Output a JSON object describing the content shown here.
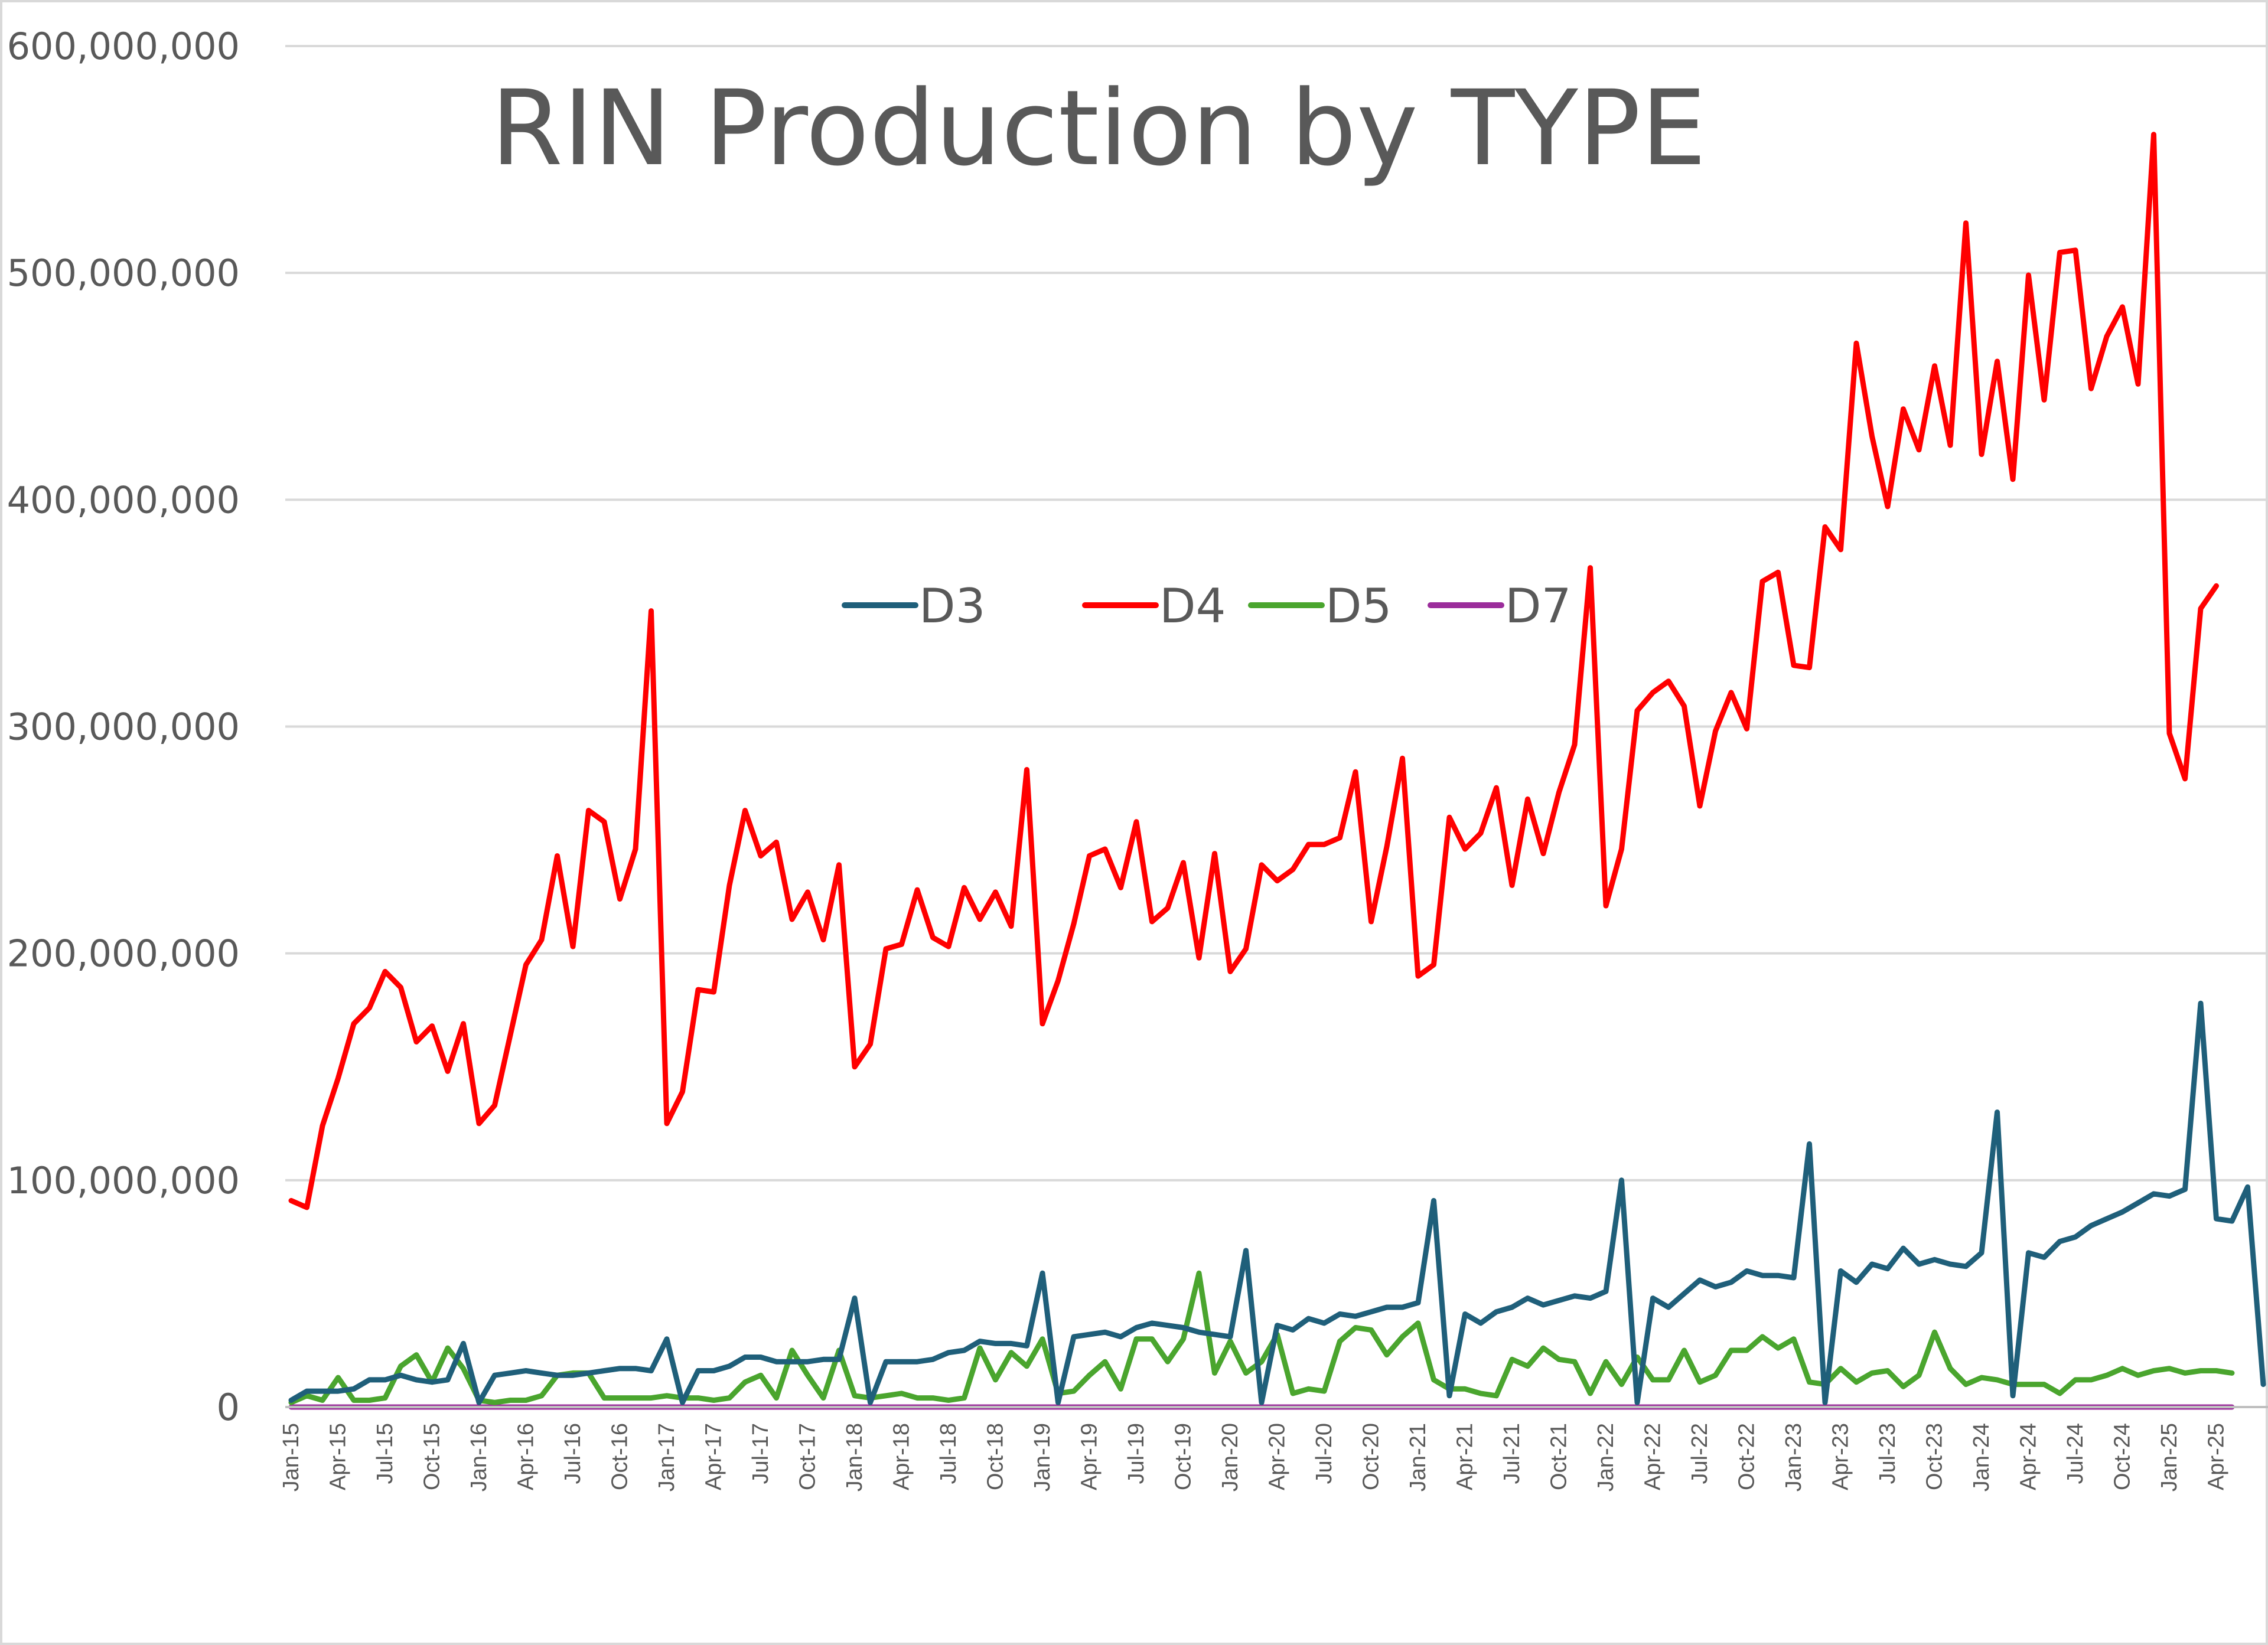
{
  "chart_data": {
    "type": "line",
    "title": "RIN Production by TYPE",
    "xlabel": "",
    "ylabel": "",
    "ylim": [
      0,
      600000000
    ],
    "yticks": [
      0,
      100000000,
      200000000,
      300000000,
      400000000,
      500000000,
      600000000
    ],
    "ytick_labels": [
      "0",
      "100,000,000",
      "200,000,000",
      "300,000,000",
      "400,000,000",
      "500,000,000",
      "600,000,000"
    ],
    "x_labels": [
      "Jan-15",
      "Apr-15",
      "Jul-15",
      "Oct-15",
      "Jan-16",
      "Apr-16",
      "Jul-16",
      "Oct-16",
      "Jan-17",
      "Apr-17",
      "Jul-17",
      "Oct-17",
      "Jan-18",
      "Apr-18",
      "Jul-18",
      "Oct-18",
      "Jan-19",
      "Apr-19",
      "Jul-19",
      "Oct-19",
      "Jan-20",
      "Apr-20",
      "Jul-20",
      "Oct-20",
      "Jan-21",
      "Apr-21",
      "Jul-21",
      "Oct-21",
      "Jan-22",
      "Apr-22",
      "Jul-22",
      "Oct-22",
      "Jan-23",
      "Apr-23",
      "Jul-23",
      "Oct-23",
      "Jan-24",
      "Apr-24",
      "Jul-24",
      "Oct-24",
      "Jan-25",
      "Apr-25"
    ],
    "x_start": "Jan-15",
    "x_end": "Apr-25",
    "grid": true,
    "legend_position": "center",
    "series": [
      {
        "name": "D3",
        "color": "#1f5f7a",
        "values": [
          3000000,
          7000000,
          7000000,
          7000000,
          8000000,
          12000000,
          12000000,
          14000000,
          12000000,
          11000000,
          12000000,
          28000000,
          2000000,
          14000000,
          15000000,
          16000000,
          15000000,
          14000000,
          14000000,
          15000000,
          16000000,
          17000000,
          17000000,
          16000000,
          30000000,
          2000000,
          16000000,
          16000000,
          18000000,
          22000000,
          22000000,
          20000000,
          20000000,
          20000000,
          21000000,
          21000000,
          48000000,
          2000000,
          20000000,
          20000000,
          20000000,
          21000000,
          24000000,
          25000000,
          29000000,
          28000000,
          28000000,
          27000000,
          59000000,
          2000000,
          31000000,
          32000000,
          33000000,
          31000000,
          35000000,
          37000000,
          36000000,
          35000000,
          33000000,
          32000000,
          31000000,
          69000000,
          2000000,
          36000000,
          34000000,
          39000000,
          37000000,
          41000000,
          40000000,
          42000000,
          44000000,
          44000000,
          46000000,
          91000000,
          5000000,
          41000000,
          37000000,
          42000000,
          44000000,
          48000000,
          45000000,
          47000000,
          49000000,
          48000000,
          51000000,
          100000000,
          2000000,
          48000000,
          44000000,
          50000000,
          56000000,
          53000000,
          55000000,
          60000000,
          58000000,
          58000000,
          57000000,
          116000000,
          2000000,
          60000000,
          55000000,
          63000000,
          61000000,
          70000000,
          63000000,
          65000000,
          63000000,
          62000000,
          68000000,
          130000000,
          5000000,
          68000000,
          66000000,
          73000000,
          75000000,
          80000000,
          83000000,
          86000000,
          90000000,
          94000000,
          93000000,
          96000000,
          178000000,
          83000000,
          82000000,
          97000000,
          10000000
        ]
      },
      {
        "name": "D4",
        "color": "#ff0000",
        "values": [
          91000000,
          88000000,
          124000000,
          145000000,
          169000000,
          176000000,
          192000000,
          185000000,
          161000000,
          168000000,
          148000000,
          169000000,
          125000000,
          133000000,
          164000000,
          195000000,
          206000000,
          243000000,
          203000000,
          263000000,
          258000000,
          224000000,
          246000000,
          351000000,
          125000000,
          139000000,
          184000000,
          183000000,
          230000000,
          263000000,
          243000000,
          249000000,
          215000000,
          227000000,
          206000000,
          239000000,
          150000000,
          160000000,
          202000000,
          204000000,
          228000000,
          207000000,
          203000000,
          229000000,
          215000000,
          227000000,
          212000000,
          281000000,
          169000000,
          188000000,
          213000000,
          243000000,
          246000000,
          229000000,
          258000000,
          214000000,
          220000000,
          240000000,
          198000000,
          244000000,
          192000000,
          202000000,
          239000000,
          232000000,
          237000000,
          248000000,
          248000000,
          251000000,
          280000000,
          214000000,
          247000000,
          286000000,
          190000000,
          195000000,
          260000000,
          246000000,
          253000000,
          273000000,
          230000000,
          268000000,
          244000000,
          271000000,
          292000000,
          370000000,
          221000000,
          246000000,
          307000000,
          315000000,
          320000000,
          309000000,
          265000000,
          298000000,
          315000000,
          299000000,
          364000000,
          368000000,
          327000000,
          326000000,
          388000000,
          378000000,
          469000000,
          428000000,
          397000000,
          440000000,
          422000000,
          459000000,
          424000000,
          522000000,
          420000000,
          461000000,
          409000000,
          499000000,
          444000000,
          509000000,
          510000000,
          449000000,
          472000000,
          485000000,
          451000000,
          561000000,
          297000000,
          277000000,
          352000000,
          362000000
        ]
      },
      {
        "name": "D5",
        "color": "#4aa52e",
        "values": [
          2000000,
          5000000,
          3000000,
          13000000,
          3000000,
          3000000,
          4000000,
          18000000,
          23000000,
          11000000,
          26000000,
          17000000,
          3000000,
          2000000,
          3000000,
          3000000,
          5000000,
          14000000,
          15000000,
          15000000,
          4000000,
          4000000,
          4000000,
          4000000,
          5000000,
          4000000,
          4000000,
          3000000,
          4000000,
          11000000,
          14000000,
          4000000,
          25000000,
          14000000,
          4000000,
          25000000,
          5000000,
          4000000,
          5000000,
          6000000,
          4000000,
          4000000,
          3000000,
          4000000,
          26000000,
          12000000,
          24000000,
          18000000,
          30000000,
          6000000,
          7000000,
          14000000,
          20000000,
          8000000,
          30000000,
          30000000,
          20000000,
          30000000,
          59000000,
          15000000,
          29000000,
          15000000,
          20000000,
          32000000,
          6000000,
          8000000,
          7000000,
          29000000,
          35000000,
          34000000,
          23000000,
          31000000,
          37000000,
          12000000,
          8000000,
          8000000,
          6000000,
          5000000,
          21000000,
          18000000,
          26000000,
          21000000,
          20000000,
          6000000,
          20000000,
          10000000,
          22000000,
          12000000,
          12000000,
          25000000,
          11000000,
          14000000,
          25000000,
          25000000,
          31000000,
          26000000,
          30000000,
          11000000,
          10000000,
          17000000,
          11000000,
          15000000,
          16000000,
          9000000,
          14000000,
          33000000,
          17000000,
          10000000,
          13000000,
          12000000,
          10000000,
          10000000,
          10000000,
          6000000,
          12000000,
          12000000,
          14000000,
          17000000,
          14000000,
          16000000,
          17000000,
          15000000,
          16000000,
          16000000,
          15000000
        ]
      },
      {
        "name": "D7",
        "color": "#9b2d9b",
        "values": [
          0,
          0,
          0,
          0,
          0,
          0,
          0,
          0,
          0,
          0,
          0,
          0,
          0,
          0,
          0,
          0,
          0,
          0,
          0,
          0,
          0,
          0,
          0,
          0,
          0,
          0,
          0,
          0,
          0,
          0,
          0,
          0,
          0,
          0,
          0,
          0,
          0,
          0,
          0,
          0,
          0,
          0,
          0,
          0,
          0,
          0,
          0,
          0,
          0,
          0,
          0,
          0,
          0,
          0,
          0,
          0,
          0,
          0,
          0,
          0,
          0,
          0,
          0,
          0,
          0,
          0,
          0,
          0,
          0,
          0,
          0,
          0,
          0,
          0,
          0,
          0,
          0,
          0,
          0,
          0,
          0,
          0,
          0,
          0,
          0,
          0,
          0,
          0,
          0,
          0,
          0,
          0,
          0,
          0,
          0,
          0,
          0,
          0,
          0,
          0,
          0,
          0,
          0,
          0,
          0,
          0,
          0,
          0,
          0,
          0,
          0,
          0,
          0,
          0,
          0,
          0,
          0,
          0,
          0,
          0,
          0,
          0,
          0,
          0,
          0
        ]
      }
    ]
  }
}
